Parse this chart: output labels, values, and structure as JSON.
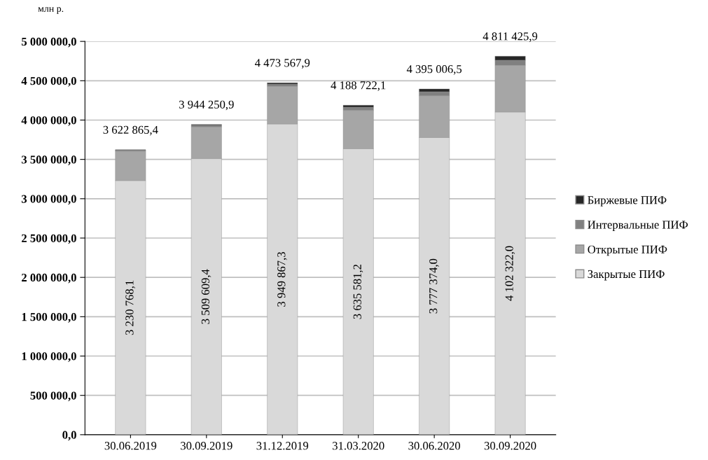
{
  "chart_data": {
    "type": "bar",
    "stacked": true,
    "ylabel": "млн р.",
    "categories": [
      "30.06.2019",
      "30.09.2019",
      "31.12.2019",
      "31.03.2020",
      "30.06.2020",
      "30.09.2020"
    ],
    "series": [
      {
        "name": "Закрытые ПИФ",
        "color": "#d9d9d9",
        "values": [
          3230768.1,
          3509609.4,
          3949867.3,
          3635581.2,
          3777374.0,
          4102322.0
        ],
        "value_labels": [
          "3 230 768,1",
          "3 509 609,4",
          "3 949 867,3",
          "3 635 581,2",
          "3 777 374,0",
          "4 102 322,0"
        ]
      },
      {
        "name": "Открытые ПИФ",
        "color": "#a6a6a6",
        "values": [
          374097.3,
          404641.5,
          480700.6,
          488140.9,
          532632.5,
          594103.9
        ]
      },
      {
        "name": "Интервальные ПИФ",
        "color": "#808080",
        "values": [
          12000,
          20000,
          25000,
          40000,
          50000,
          65000
        ]
      },
      {
        "name": "Биржевые ПИФ",
        "color": "#262626",
        "values": [
          6000,
          10000,
          18000,
          25000,
          35000,
          50000
        ]
      }
    ],
    "totals": [
      "3 622 865,4",
      "3 944 250,9",
      "4 473 567,9",
      "4 188 722,1",
      "4 395 006,5",
      "4 811 425,9"
    ],
    "ylim": [
      0,
      5000000
    ],
    "yticks": [
      {
        "value": 0,
        "label": "0,0"
      },
      {
        "value": 500000,
        "label": "500 000,0"
      },
      {
        "value": 1000000,
        "label": "1 000 000,0"
      },
      {
        "value": 1500000,
        "label": "1 500 000,0"
      },
      {
        "value": 2000000,
        "label": "2 000 000,0"
      },
      {
        "value": 2500000,
        "label": "2 500 000,0"
      },
      {
        "value": 3000000,
        "label": "3 000 000,0"
      },
      {
        "value": 3500000,
        "label": "3 500 000,0"
      },
      {
        "value": 4000000,
        "label": "4 000 000,0"
      },
      {
        "value": 4500000,
        "label": "4 500 000,0"
      },
      {
        "value": 5000000,
        "label": "5 000 000,0"
      }
    ],
    "grid": "y",
    "legend": "right"
  }
}
